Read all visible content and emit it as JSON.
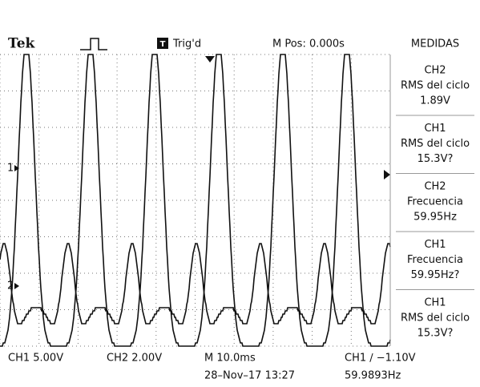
{
  "header": {
    "brand": "Tek",
    "trigger_status": "Trig'd",
    "trigger_icon": "T",
    "position": "M Pos: 0.000s"
  },
  "measurements": {
    "title": "MEDIDAS",
    "items": [
      {
        "channel": "CH2",
        "label": "RMS del ciclo",
        "value": "1.89V"
      },
      {
        "channel": "CH1",
        "label": "RMS del ciclo",
        "value": "15.3V?"
      },
      {
        "channel": "CH2",
        "label": "Frecuencia",
        "value": "59.95Hz"
      },
      {
        "channel": "CH1",
        "label": "Frecuencia",
        "value": "59.95Hz?"
      },
      {
        "channel": "CH1",
        "label": "RMS del ciclo",
        "value": "15.3V?"
      }
    ]
  },
  "markers": {
    "ch1": "1",
    "ch2": "2"
  },
  "footer": {
    "ch1_scale": "CH1  5.00V",
    "ch2_scale": "CH2  2.00V",
    "timebase": "M 10.0ms",
    "trigger": "CH1 ∕ −1.10V",
    "date": "28–Nov–17 13:27",
    "frequency": "59.9893Hz"
  }
}
